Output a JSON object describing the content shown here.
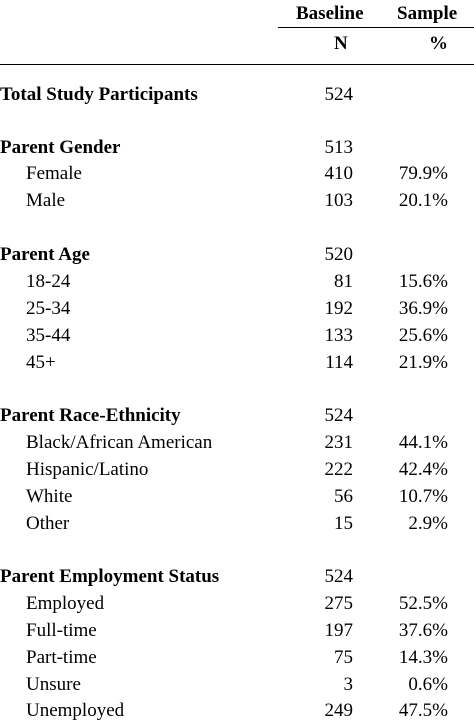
{
  "header": {
    "baseline": "Baseline",
    "sample": "Sample",
    "col_n": "N",
    "col_pct": "%"
  },
  "rows": [
    {
      "label": "Total Study Participants",
      "n": "524",
      "pct": "",
      "type": "section"
    },
    {
      "label": "Parent Gender",
      "n": "513",
      "pct": "",
      "type": "section"
    },
    {
      "label": "Female",
      "n": "410",
      "pct": "79.9%",
      "type": "item"
    },
    {
      "label": "Male",
      "n": "103",
      "pct": "20.1%",
      "type": "item"
    },
    {
      "label": "Parent Age",
      "n": "520",
      "pct": "",
      "type": "section"
    },
    {
      "label": "18-24",
      "n": "81",
      "pct": "15.6%",
      "type": "item"
    },
    {
      "label": "25-34",
      "n": "192",
      "pct": "36.9%",
      "type": "item"
    },
    {
      "label": "35-44",
      "n": "133",
      "pct": "25.6%",
      "type": "item"
    },
    {
      "label": "45+",
      "n": "114",
      "pct": "21.9%",
      "type": "item"
    },
    {
      "label": "Parent Race-Ethnicity",
      "n": "524",
      "pct": "",
      "type": "section"
    },
    {
      "label": "Black/African American",
      "n": "231",
      "pct": "44.1%",
      "type": "item"
    },
    {
      "label": "Hispanic/Latino",
      "n": "222",
      "pct": "42.4%",
      "type": "item"
    },
    {
      "label": "White",
      "n": "56",
      "pct": "10.7%",
      "type": "item"
    },
    {
      "label": "Other",
      "n": "15",
      "pct": "2.9%",
      "type": "item"
    },
    {
      "label": "Parent Employment Status",
      "n": "524",
      "pct": "",
      "type": "section"
    },
    {
      "label": "Employed",
      "n": "275",
      "pct": "52.5%",
      "type": "item"
    },
    {
      "label": "Full-time",
      "n": "197",
      "pct": "37.6%",
      "type": "item"
    },
    {
      "label": "Part-time",
      "n": "75",
      "pct": "14.3%",
      "type": "item"
    },
    {
      "label": "Unsure",
      "n": "3",
      "pct": "0.6%",
      "type": "item"
    },
    {
      "label": "Unemployed",
      "n": "249",
      "pct": "47.5%",
      "type": "item"
    }
  ]
}
